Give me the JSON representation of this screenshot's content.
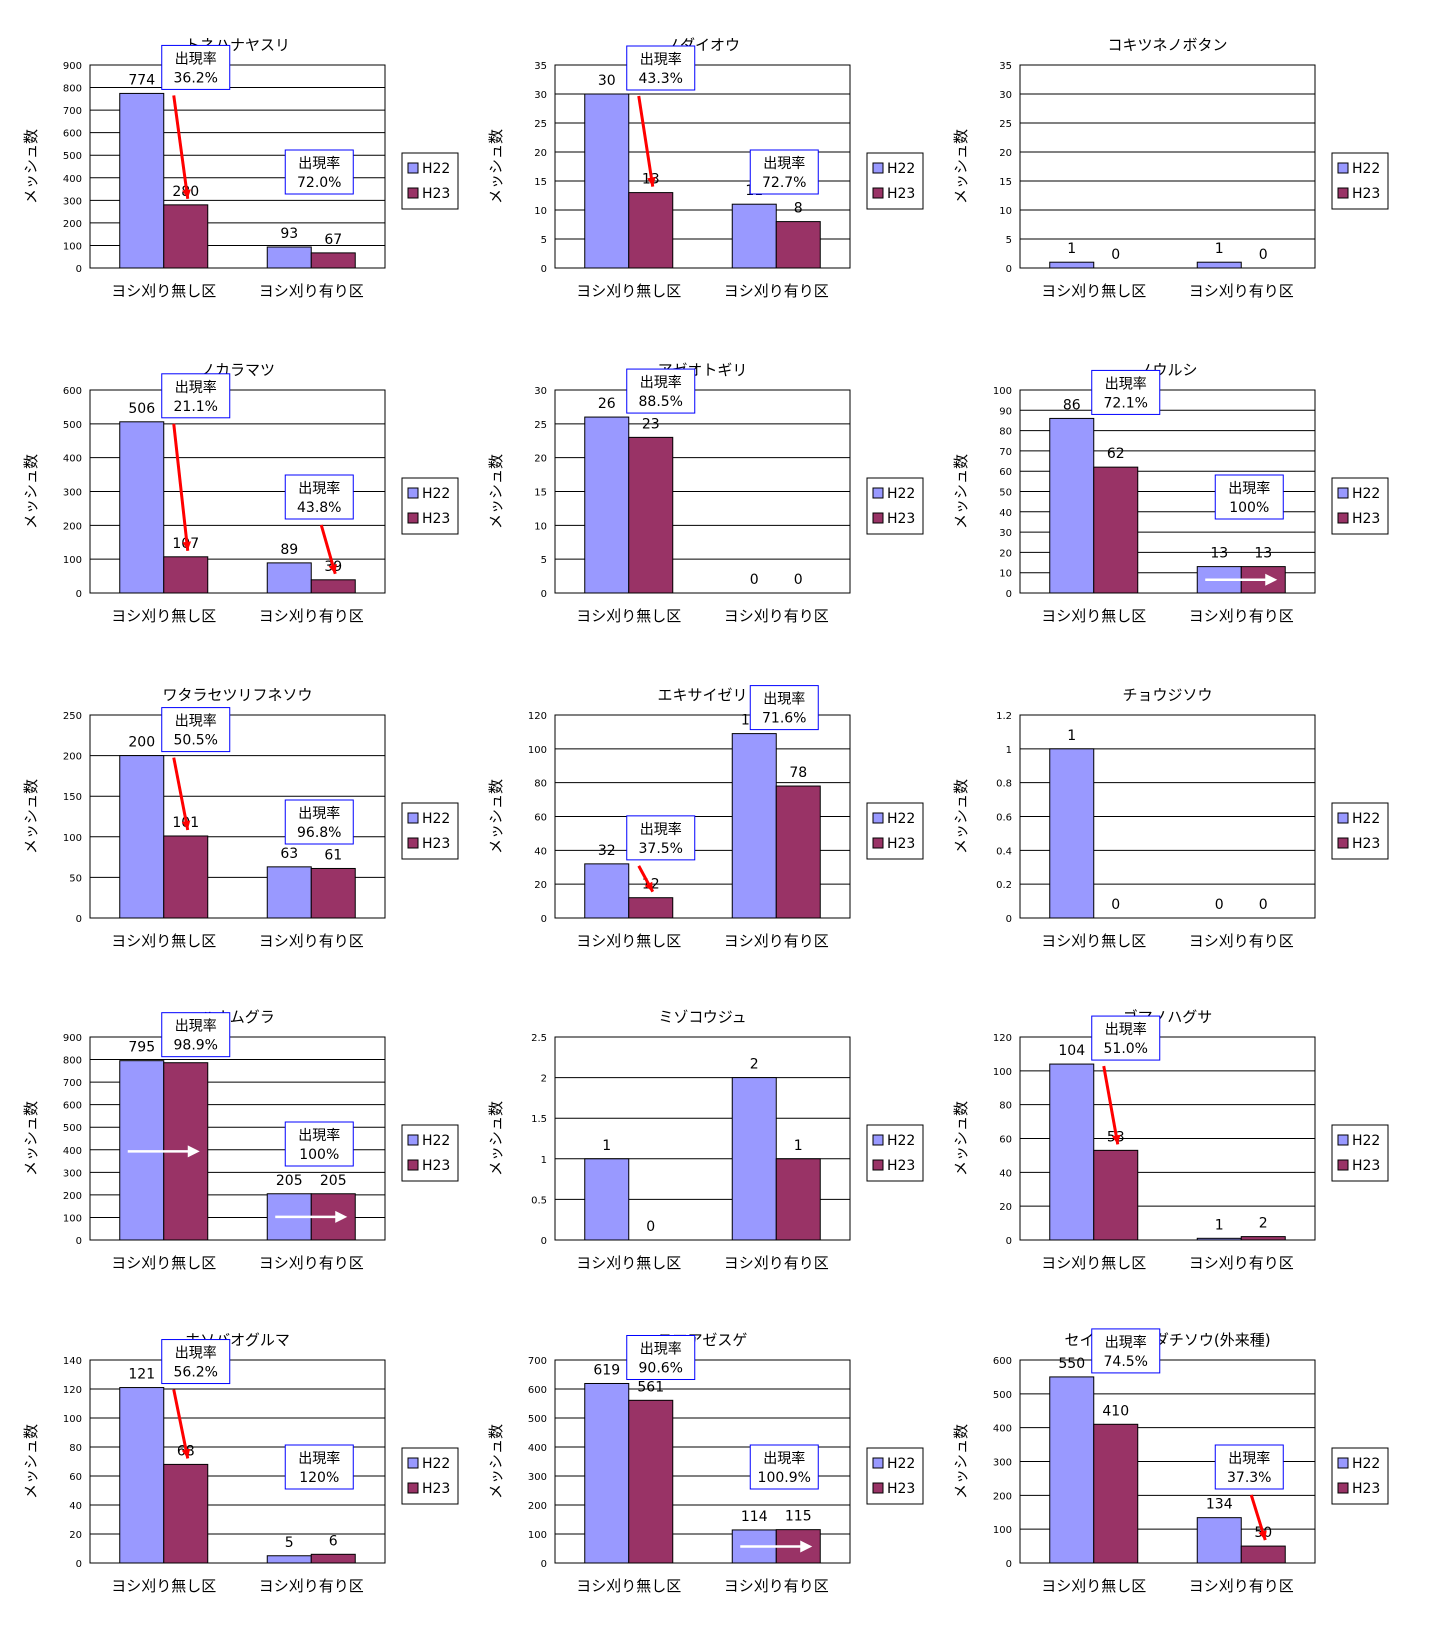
{
  "common": {
    "categories": [
      "ヨシ刈り無し区",
      "ヨシ刈り有り区"
    ],
    "legend": [
      "H22",
      "H23"
    ],
    "ylabel": "メッシュ数",
    "rate_label": "出現率",
    "colors": {
      "H22": "#9999ff",
      "H23": "#993366",
      "arrow_red": "#ff0000",
      "arrow_white": "#ffffff",
      "box_border": "#0000ff"
    }
  },
  "chart_data": [
    {
      "type": "bar",
      "title": "トネハナヤスリ",
      "ylim": [
        0,
        900
      ],
      "yticks": [
        0,
        100,
        200,
        300,
        400,
        500,
        600,
        700,
        800,
        900
      ],
      "series": [
        {
          "name": "H22",
          "values": [
            774,
            93
          ]
        },
        {
          "name": "H23",
          "values": [
            280,
            67
          ]
        }
      ],
      "data_labels": [
        [
          "774",
          "280"
        ],
        [
          "93",
          "67"
        ]
      ],
      "rates": [
        {
          "category": 0,
          "value": "36.2%",
          "arrow": "red"
        },
        {
          "category": 1,
          "value": "72.0%",
          "arrow": "none"
        }
      ]
    },
    {
      "type": "bar",
      "title": "ノダイオウ",
      "ylim": [
        0,
        35
      ],
      "yticks": [
        0,
        5,
        10,
        15,
        20,
        25,
        30,
        35
      ],
      "series": [
        {
          "name": "H22",
          "values": [
            30,
            11
          ]
        },
        {
          "name": "H23",
          "values": [
            13,
            8
          ]
        }
      ],
      "data_labels": [
        [
          "30",
          "13"
        ],
        [
          "11",
          "8"
        ]
      ],
      "rates": [
        {
          "category": 0,
          "value": "43.3%",
          "arrow": "red"
        },
        {
          "category": 1,
          "value": "72.7%",
          "arrow": "none"
        }
      ]
    },
    {
      "type": "bar",
      "title": "コキツネノボタン",
      "ylim": [
        0,
        35
      ],
      "yticks": [
        0,
        5,
        10,
        15,
        20,
        25,
        30,
        35
      ],
      "series": [
        {
          "name": "H22",
          "values": [
            1,
            1
          ]
        },
        {
          "name": "H23",
          "values": [
            0,
            0
          ]
        }
      ],
      "data_labels": [
        [
          "1",
          "0"
        ],
        [
          "1",
          "0"
        ]
      ],
      "rates": []
    },
    {
      "type": "bar",
      "title": "ノカラマツ",
      "ylim": [
        0,
        600
      ],
      "yticks": [
        0,
        100,
        200,
        300,
        400,
        500,
        600
      ],
      "series": [
        {
          "name": "H22",
          "values": [
            506,
            89
          ]
        },
        {
          "name": "H23",
          "values": [
            107,
            39
          ]
        }
      ],
      "data_labels": [
        [
          "506",
          "107"
        ],
        [
          "89",
          "39"
        ]
      ],
      "rates": [
        {
          "category": 0,
          "value": "21.1%",
          "arrow": "red"
        },
        {
          "category": 1,
          "value": "43.8%",
          "arrow": "red"
        }
      ]
    },
    {
      "type": "bar",
      "title": "アゼオトギリ",
      "ylim": [
        0,
        30
      ],
      "yticks": [
        0,
        5,
        10,
        15,
        20,
        25,
        30
      ],
      "series": [
        {
          "name": "H22",
          "values": [
            26,
            0
          ]
        },
        {
          "name": "H23",
          "values": [
            23,
            0
          ]
        }
      ],
      "data_labels": [
        [
          "26",
          "23"
        ],
        [
          "0",
          "0"
        ]
      ],
      "rates": [
        {
          "category": 0,
          "value": "88.5%",
          "arrow": "none"
        }
      ]
    },
    {
      "type": "bar",
      "title": "ノウルシ",
      "ylim": [
        0,
        100
      ],
      "yticks": [
        0,
        10,
        20,
        30,
        40,
        50,
        60,
        70,
        80,
        90,
        100
      ],
      "series": [
        {
          "name": "H22",
          "values": [
            86,
            13
          ]
        },
        {
          "name": "H23",
          "values": [
            62,
            13
          ]
        }
      ],
      "data_labels": [
        [
          "86",
          "62"
        ],
        [
          "13",
          "13"
        ]
      ],
      "rates": [
        {
          "category": 0,
          "value": "72.1%",
          "arrow": "none"
        },
        {
          "category": 1,
          "value": "100%",
          "arrow": "white"
        }
      ]
    },
    {
      "type": "bar",
      "title": "ワタラセツリフネソウ",
      "ylim": [
        0,
        250
      ],
      "yticks": [
        0,
        50,
        100,
        150,
        200,
        250
      ],
      "series": [
        {
          "name": "H22",
          "values": [
            200,
            63
          ]
        },
        {
          "name": "H23",
          "values": [
            101,
            61
          ]
        }
      ],
      "data_labels": [
        [
          "200",
          "101"
        ],
        [
          "63",
          "61"
        ]
      ],
      "rates": [
        {
          "category": 0,
          "value": "50.5%",
          "arrow": "red"
        },
        {
          "category": 1,
          "value": "96.8%",
          "arrow": "none"
        }
      ]
    },
    {
      "type": "bar",
      "title": "エキサイゼリ",
      "ylim": [
        0,
        120
      ],
      "yticks": [
        0,
        20,
        40,
        60,
        80,
        100,
        120
      ],
      "series": [
        {
          "name": "H22",
          "values": [
            32,
            109
          ]
        },
        {
          "name": "H23",
          "values": [
            12,
            78
          ]
        }
      ],
      "data_labels": [
        [
          "32",
          "12"
        ],
        [
          "109",
          "78"
        ]
      ],
      "rates": [
        {
          "category": 0,
          "value": "37.5%",
          "arrow": "red"
        },
        {
          "category": 1,
          "value": "71.6%",
          "arrow": "none"
        }
      ]
    },
    {
      "type": "bar",
      "title": "チョウジソウ",
      "ylim": [
        0,
        1.2
      ],
      "yticks": [
        0,
        0.2,
        0.4,
        0.6,
        0.8,
        1,
        1.2
      ],
      "series": [
        {
          "name": "H22",
          "values": [
            1,
            0
          ]
        },
        {
          "name": "H23",
          "values": [
            0,
            0
          ]
        }
      ],
      "data_labels": [
        [
          "1",
          "0"
        ],
        [
          "0",
          "0"
        ]
      ],
      "rates": []
    },
    {
      "type": "bar",
      "title": "ハナムグラ",
      "ylim": [
        0,
        900
      ],
      "yticks": [
        0,
        100,
        200,
        300,
        400,
        500,
        600,
        700,
        800,
        900
      ],
      "series": [
        {
          "name": "H22",
          "values": [
            795,
            205
          ]
        },
        {
          "name": "H23",
          "values": [
            786,
            205
          ]
        }
      ],
      "data_labels": [
        [
          "795",
          "786"
        ],
        [
          "205",
          "205"
        ]
      ],
      "rates": [
        {
          "category": 0,
          "value": "98.9%",
          "arrow": "white"
        },
        {
          "category": 1,
          "value": "100%",
          "arrow": "white"
        }
      ]
    },
    {
      "type": "bar",
      "title": "ミゾコウジュ",
      "ylim": [
        0,
        2.5
      ],
      "yticks": [
        0,
        0.5,
        1,
        1.5,
        2,
        2.5
      ],
      "series": [
        {
          "name": "H22",
          "values": [
            1,
            2
          ]
        },
        {
          "name": "H23",
          "values": [
            0,
            1
          ]
        }
      ],
      "data_labels": [
        [
          "1",
          "0"
        ],
        [
          "2",
          "1"
        ]
      ],
      "rates": []
    },
    {
      "type": "bar",
      "title": "ゴマノハグサ",
      "ylim": [
        0,
        120
      ],
      "yticks": [
        0,
        20,
        40,
        60,
        80,
        100,
        120
      ],
      "series": [
        {
          "name": "H22",
          "values": [
            104,
            1
          ]
        },
        {
          "name": "H23",
          "values": [
            53,
            2
          ]
        }
      ],
      "data_labels": [
        [
          "104",
          "53"
        ],
        [
          "1",
          "2"
        ]
      ],
      "rates": [
        {
          "category": 0,
          "value": "51.0%",
          "arrow": "red"
        }
      ]
    },
    {
      "type": "bar",
      "title": "ホソバオグルマ",
      "ylim": [
        0,
        140
      ],
      "yticks": [
        0,
        20,
        40,
        60,
        80,
        100,
        120,
        140
      ],
      "series": [
        {
          "name": "H22",
          "values": [
            121,
            5
          ]
        },
        {
          "name": "H23",
          "values": [
            68,
            6
          ]
        }
      ],
      "data_labels": [
        [
          "121",
          "68"
        ],
        [
          "5",
          "6"
        ]
      ],
      "rates": [
        {
          "category": 0,
          "value": "56.2%",
          "arrow": "red"
        },
        {
          "category": 1,
          "value": "120%",
          "arrow": "none"
        }
      ]
    },
    {
      "type": "bar",
      "title": "ヌマアゼスゲ",
      "ylim": [
        0,
        700
      ],
      "yticks": [
        0,
        100,
        200,
        300,
        400,
        500,
        600,
        700
      ],
      "series": [
        {
          "name": "H22",
          "values": [
            619,
            114
          ]
        },
        {
          "name": "H23",
          "values": [
            561,
            115
          ]
        }
      ],
      "data_labels": [
        [
          "619",
          "561"
        ],
        [
          "114",
          "115"
        ]
      ],
      "rates": [
        {
          "category": 0,
          "value": "90.6%",
          "arrow": "none"
        },
        {
          "category": 1,
          "value": "100.9%",
          "arrow": "white"
        }
      ]
    },
    {
      "type": "bar",
      "title": "セイタカアワダチソウ(外来種)",
      "ylim": [
        0,
        600
      ],
      "yticks": [
        0,
        100,
        200,
        300,
        400,
        500,
        600
      ],
      "series": [
        {
          "name": "H22",
          "values": [
            550,
            134
          ]
        },
        {
          "name": "H23",
          "values": [
            410,
            50
          ]
        }
      ],
      "data_labels": [
        [
          "550",
          "410"
        ],
        [
          "134",
          "50"
        ]
      ],
      "rates": [
        {
          "category": 0,
          "value": "74.5%",
          "arrow": "none"
        },
        {
          "category": 1,
          "value": "37.3%",
          "arrow": "red"
        }
      ]
    }
  ]
}
